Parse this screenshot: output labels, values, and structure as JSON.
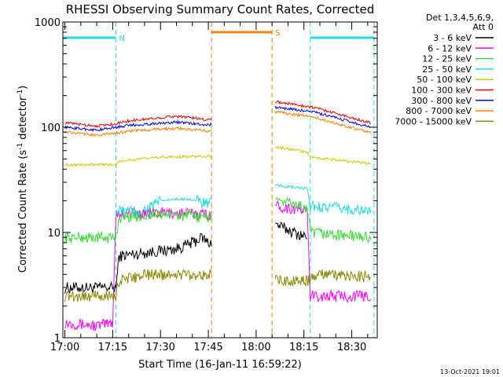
{
  "chart_data": {
    "type": "line",
    "title": "RHESSI Observing Summary Count Rates, Corrected",
    "xlabel": "Start Time (16-Jan-11 16:59:22)",
    "ylabel_main": "Corrected Count Rate (s",
    "ylabel_sup1": "-1",
    "ylabel_mid": " detector",
    "ylabel_sup2": "-1",
    "ylabel_end": ")",
    "yscale": "log",
    "ylim": [
      1,
      1000
    ],
    "xlim": [
      "16:59:22",
      "18:38:00"
    ],
    "x_tick_labels": [
      "17:00",
      "17:15",
      "17:30",
      "17:45",
      "18:00",
      "18:15",
      "18:30"
    ],
    "y_tick_labels": [
      "1",
      "10",
      "100",
      "1000"
    ],
    "legend_header_1": "Det 1,3,4,5,6,9,",
    "legend_header_2": "Att 0",
    "legend_position": "right",
    "footer_date": "13-Oct-2021 19:01",
    "flags": [
      {
        "label": "N",
        "color": "#22dddd",
        "intervals": [
          [
            "16:59:22",
            "17:16:00"
          ],
          [
            "18:17:00",
            "18:37:00"
          ]
        ]
      },
      {
        "label": "S",
        "color": "#ff7f00",
        "intervals": [
          [
            "17:46:00",
            "18:05:00"
          ]
        ]
      }
    ],
    "data_gap": [
      "17:46:00",
      "18:06:00"
    ],
    "series": [
      {
        "name": "3 - 6 keV",
        "color": "#000000",
        "points": [
          [
            "17:00",
            3
          ],
          [
            "17:16",
            3
          ],
          [
            "17:17",
            6
          ],
          [
            "17:26",
            6.5
          ],
          [
            "17:35",
            7
          ],
          [
            "17:40",
            8
          ],
          [
            "17:43",
            9
          ],
          [
            "17:45",
            8
          ],
          [
            "18:06",
            12
          ],
          [
            "18:12",
            10
          ],
          [
            "18:16",
            9
          ]
        ]
      },
      {
        "name": "6 - 12 keV",
        "color": "#ff00ff",
        "points": [
          [
            "17:00",
            1.4
          ],
          [
            "17:10",
            1.3
          ],
          [
            "17:15",
            1.4
          ],
          [
            "17:16",
            15
          ],
          [
            "17:30",
            15.5
          ],
          [
            "17:45",
            15
          ],
          [
            "18:06",
            18
          ],
          [
            "18:16",
            16
          ],
          [
            "18:17",
            2.5
          ],
          [
            "18:36",
            2.5
          ]
        ]
      },
      {
        "name": "12 - 25 keV",
        "color": "#33dd33",
        "points": [
          [
            "17:00",
            9
          ],
          [
            "17:10",
            9
          ],
          [
            "17:16",
            9
          ],
          [
            "17:17",
            14
          ],
          [
            "17:30",
            15
          ],
          [
            "17:45",
            14
          ],
          [
            "18:06",
            21
          ],
          [
            "18:16",
            17
          ],
          [
            "18:17",
            10
          ],
          [
            "18:36",
            9
          ]
        ]
      },
      {
        "name": "25 - 50 keV",
        "color": "#22dddd",
        "points": [
          [
            "17:16",
            16
          ],
          [
            "17:24",
            16
          ],
          [
            "17:30",
            20
          ],
          [
            "17:38",
            21
          ],
          [
            "17:45",
            19
          ],
          [
            "18:06",
            28
          ],
          [
            "18:16",
            26
          ],
          [
            "18:17",
            18
          ],
          [
            "18:36",
            16
          ]
        ]
      },
      {
        "name": "50 - 100 keV",
        "color": "#cccc00",
        "points": [
          [
            "17:00",
            44
          ],
          [
            "17:16",
            44
          ],
          [
            "17:17",
            48
          ],
          [
            "17:30",
            52
          ],
          [
            "17:45",
            53
          ],
          [
            "18:06",
            65
          ],
          [
            "18:16",
            58
          ],
          [
            "18:17",
            52
          ],
          [
            "18:36",
            45
          ]
        ]
      },
      {
        "name": "100 - 300 keV",
        "color": "#ee0000",
        "points": [
          [
            "17:00",
            110
          ],
          [
            "17:10",
            103
          ],
          [
            "17:16",
            108
          ],
          [
            "17:20",
            115
          ],
          [
            "17:35",
            128
          ],
          [
            "17:45",
            118
          ],
          [
            "18:06",
            175
          ],
          [
            "18:18",
            155
          ],
          [
            "18:36",
            110
          ]
        ]
      },
      {
        "name": "300 - 800 keV",
        "color": "#0000ee",
        "points": [
          [
            "17:00",
            100
          ],
          [
            "17:10",
            94
          ],
          [
            "17:16",
            100
          ],
          [
            "17:20",
            104
          ],
          [
            "17:35",
            112
          ],
          [
            "17:45",
            105
          ],
          [
            "18:06",
            155
          ],
          [
            "18:18",
            140
          ],
          [
            "18:36",
            100
          ]
        ]
      },
      {
        "name": "800 - 7000 keV",
        "color": "#ff7f00",
        "points": [
          [
            "17:00",
            90
          ],
          [
            "17:10",
            84
          ],
          [
            "17:16",
            88
          ],
          [
            "17:20",
            92
          ],
          [
            "17:35",
            98
          ],
          [
            "17:45",
            92
          ],
          [
            "18:06",
            140
          ],
          [
            "18:18",
            125
          ],
          [
            "18:36",
            88
          ]
        ]
      },
      {
        "name": "7000 - 15000 keV",
        "color": "#888800",
        "points": [
          [
            "17:00",
            2.5
          ],
          [
            "17:16",
            2.5
          ],
          [
            "17:17",
            3.5
          ],
          [
            "17:26",
            4
          ],
          [
            "17:45",
            4
          ],
          [
            "18:06",
            3.5
          ],
          [
            "18:16",
            3.5
          ],
          [
            "18:20",
            4
          ],
          [
            "18:36",
            3.8
          ]
        ]
      }
    ]
  }
}
